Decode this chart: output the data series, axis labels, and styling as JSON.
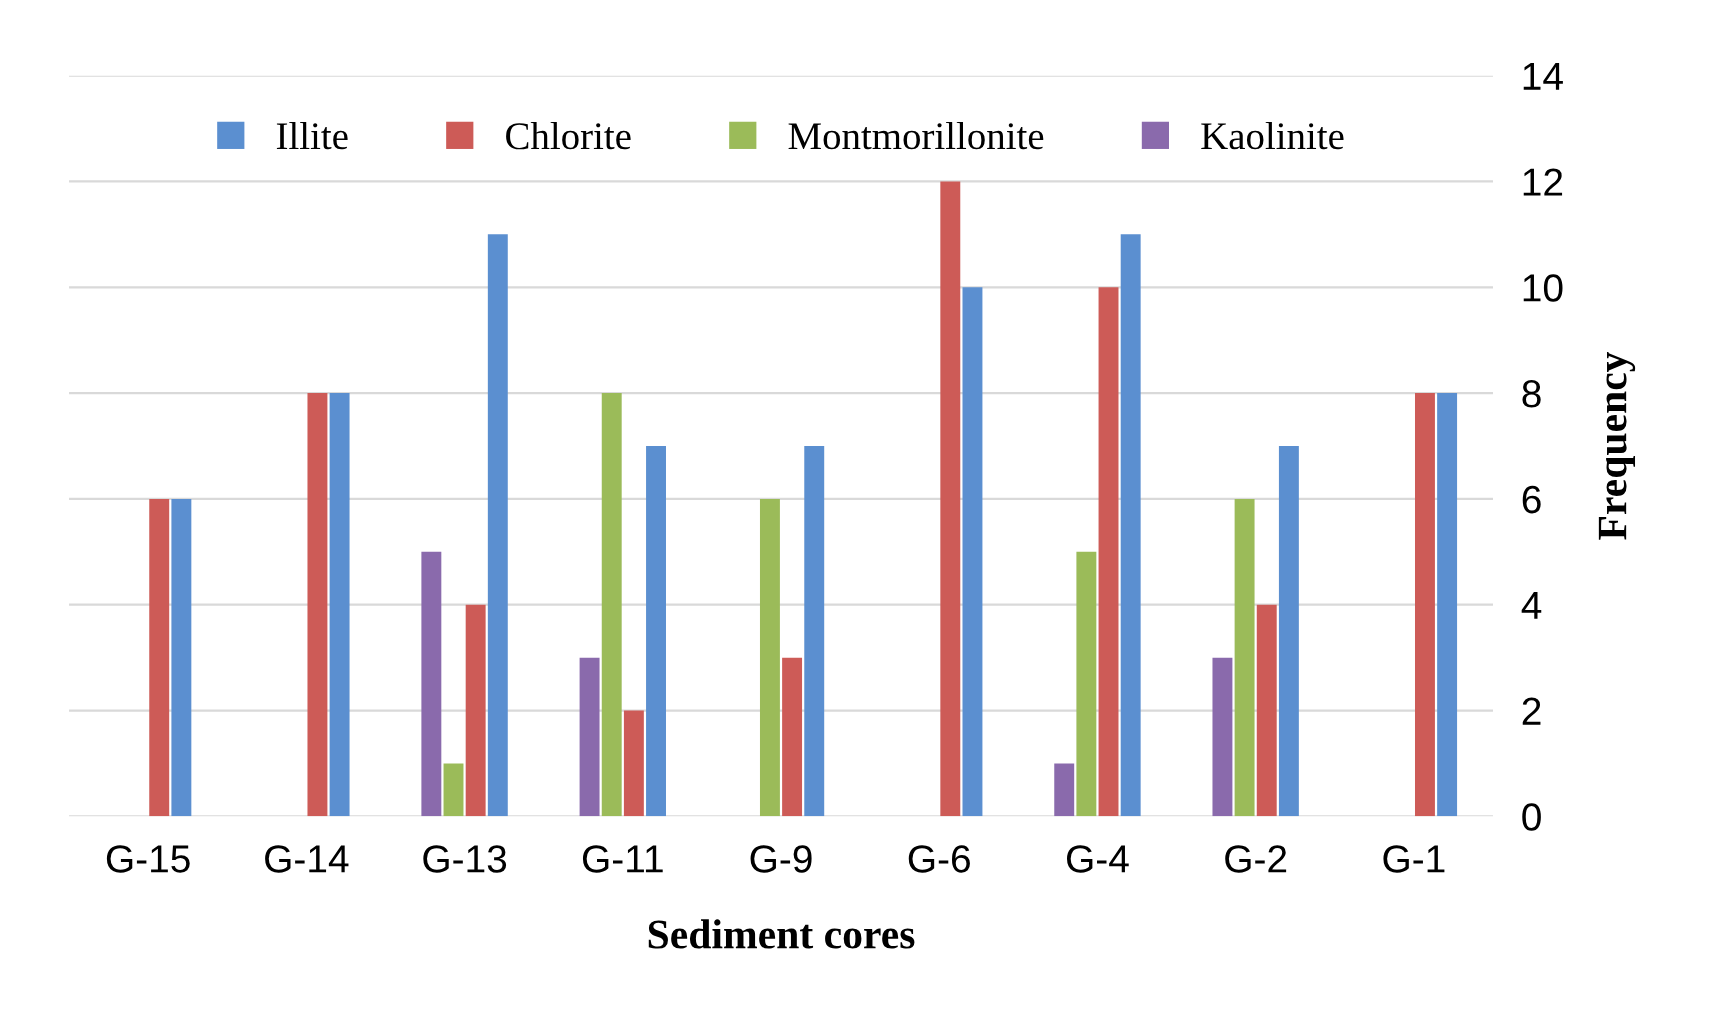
{
  "chart_data": {
    "type": "bar",
    "xlabel": "Sediment cores",
    "ylabel": "Frequency",
    "categories": [
      "G-15",
      "G-14",
      "G-13",
      "G-11",
      "G-9",
      "G-6",
      "G-4",
      "G-2",
      "G-1"
    ],
    "series": [
      {
        "name": "Illite",
        "color": "#5b8fd0",
        "values": [
          6,
          8,
          11,
          7,
          7,
          10,
          11,
          7,
          8
        ]
      },
      {
        "name": "Chlorite",
        "color": "#cd5b57",
        "values": [
          6,
          8,
          4,
          2,
          3,
          12,
          10,
          4,
          8
        ]
      },
      {
        "name": "Montmorillonite",
        "color": "#9bbb59",
        "values": [
          0,
          0,
          1,
          8,
          6,
          0,
          5,
          6,
          0
        ]
      },
      {
        "name": "Kaolinite",
        "color": "#8a6aac",
        "values": [
          0,
          0,
          5,
          3,
          0,
          0,
          1,
          3,
          0
        ]
      }
    ],
    "ylim": [
      0,
      14
    ],
    "yticks": [
      0,
      2,
      4,
      6,
      8,
      10,
      12,
      14
    ],
    "grid": "y",
    "legend": "top"
  }
}
